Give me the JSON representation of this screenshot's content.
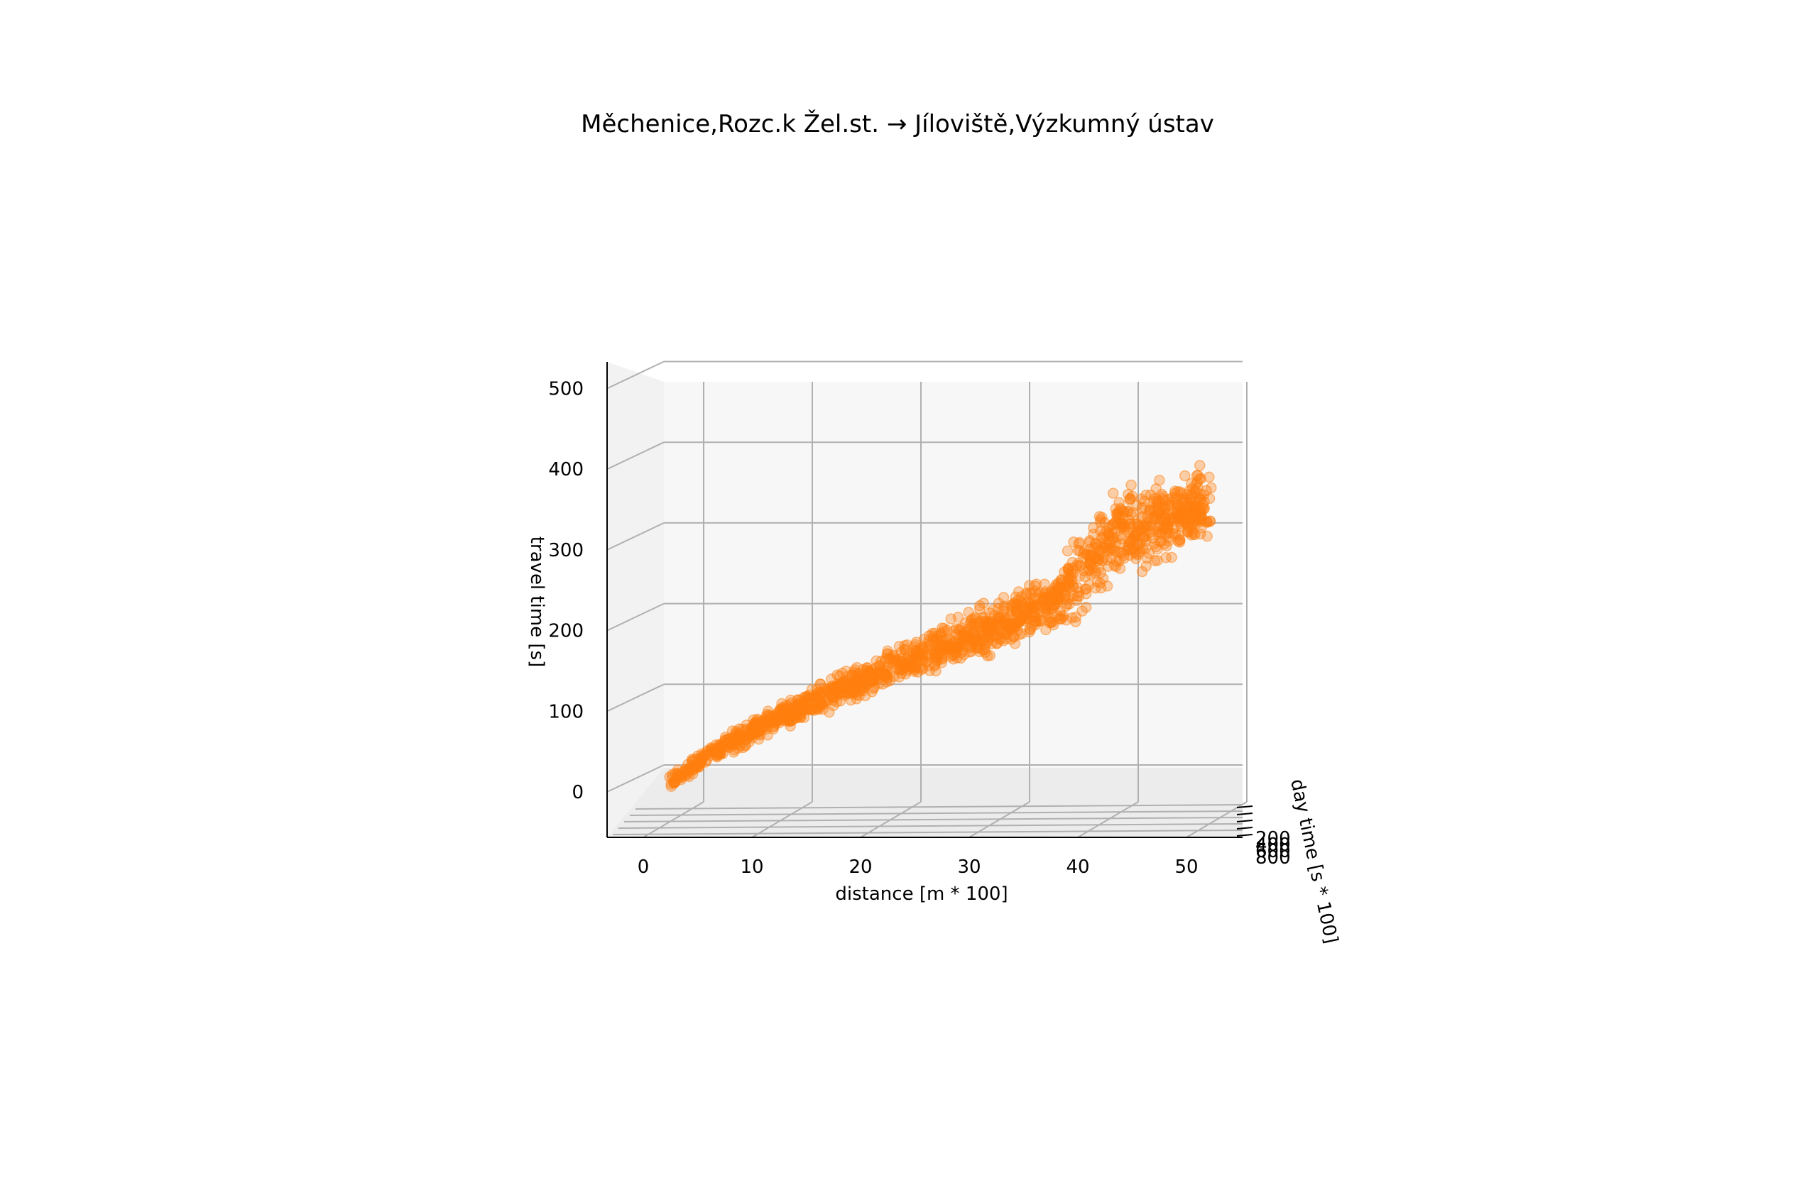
{
  "chart_data": {
    "type": "scatter",
    "title": "Měchenice,Rozc.k Žel.st. → Jíloviště,Výzkumný ústav",
    "xlabel": "distance [m * 100]",
    "ylabel": "travel time [s]",
    "zlabel": "day time [s * 100]",
    "xlim": [
      -3,
      55
    ],
    "ylim": [
      -50,
      520
    ],
    "x_ticks": [
      "0",
      "10",
      "20",
      "30",
      "40",
      "50"
    ],
    "y_ticks": [
      "0",
      "100",
      "200",
      "300",
      "400",
      "500"
    ],
    "z_ticks": [
      "200",
      "400",
      "600",
      "800"
    ],
    "grid": true,
    "legend": "none",
    "colors": {
      "points": "#ff7f0e",
      "pane": "#f2f2f2",
      "grid": "#b0b0b0"
    },
    "trend": {
      "x": [
        1,
        5,
        10,
        15,
        20,
        25,
        30,
        33,
        36,
        38,
        40,
        42,
        44,
        46,
        48,
        50,
        51
      ],
      "y": [
        12,
        48,
        85,
        115,
        145,
        172,
        200,
        215,
        232,
        255,
        285,
        320,
        330,
        335,
        345,
        350,
        360
      ]
    }
  }
}
